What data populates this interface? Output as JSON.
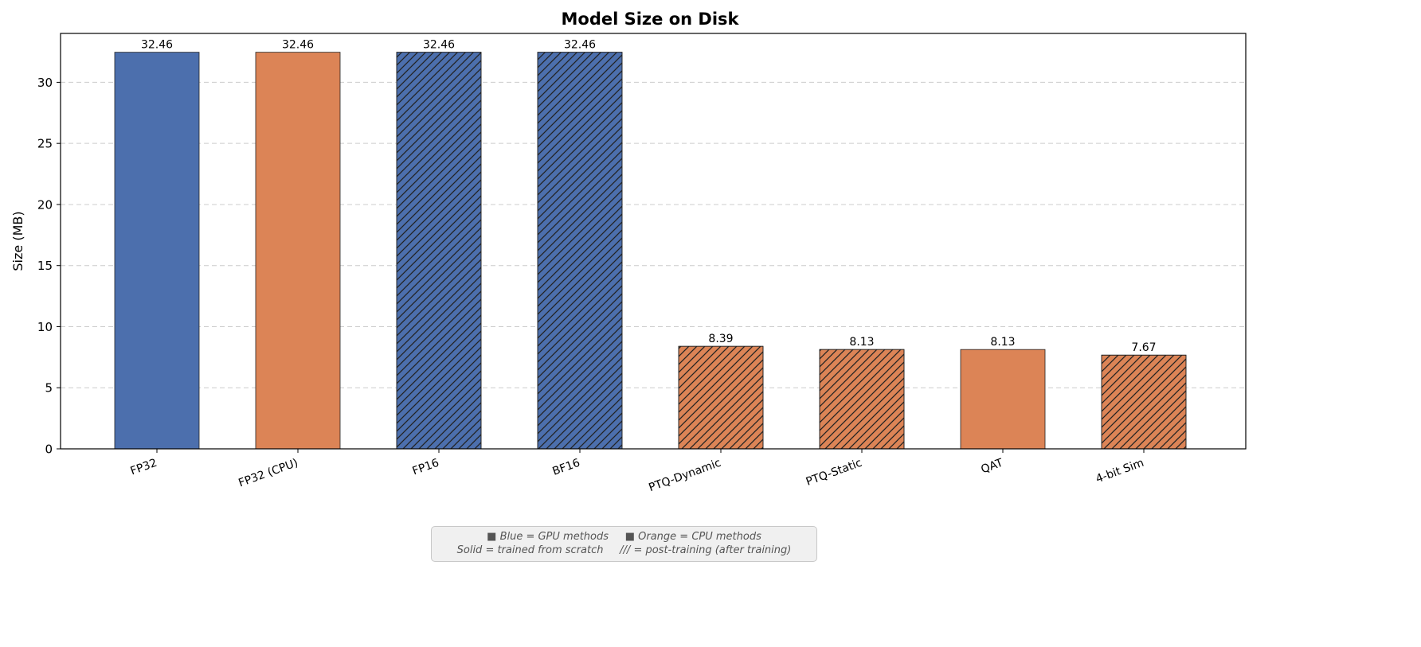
{
  "chart_data": {
    "type": "bar",
    "title": "Model Size on Disk",
    "xlabel": "",
    "ylabel": "Size (MB)",
    "ylim": [
      0,
      34
    ],
    "yticks": [
      0,
      5,
      10,
      15,
      20,
      25,
      30
    ],
    "grid": "y-dashed",
    "categories": [
      "FP32",
      "FP32 (CPU)",
      "FP16",
      "BF16",
      "PTQ-Dynamic",
      "PTQ-Static",
      "QAT",
      "4-bit Sim"
    ],
    "values": [
      32.46,
      32.46,
      32.46,
      32.46,
      8.39,
      8.13,
      8.13,
      7.67
    ],
    "value_labels": [
      "32.46",
      "32.46",
      "32.46",
      "32.46",
      "8.39",
      "8.13",
      "8.13",
      "7.67"
    ],
    "bar_colors": [
      "#4c6fad",
      "#dc8456",
      "#4c6fad",
      "#4c6fad",
      "#dc8456",
      "#dc8456",
      "#dc8456",
      "#dc8456"
    ],
    "hatched": [
      false,
      false,
      true,
      true,
      true,
      true,
      false,
      true
    ],
    "colors": {
      "gpu": "#4c6fad",
      "cpu": "#dc8456"
    }
  },
  "legend_note": {
    "line1_square": "■",
    "line1_a": "Blue = GPU methods",
    "line1_square2": "■",
    "line1_b": "Orange = CPU methods",
    "line2_a": "Solid = trained from scratch",
    "line2_b": "/// = post-training (after training)"
  }
}
